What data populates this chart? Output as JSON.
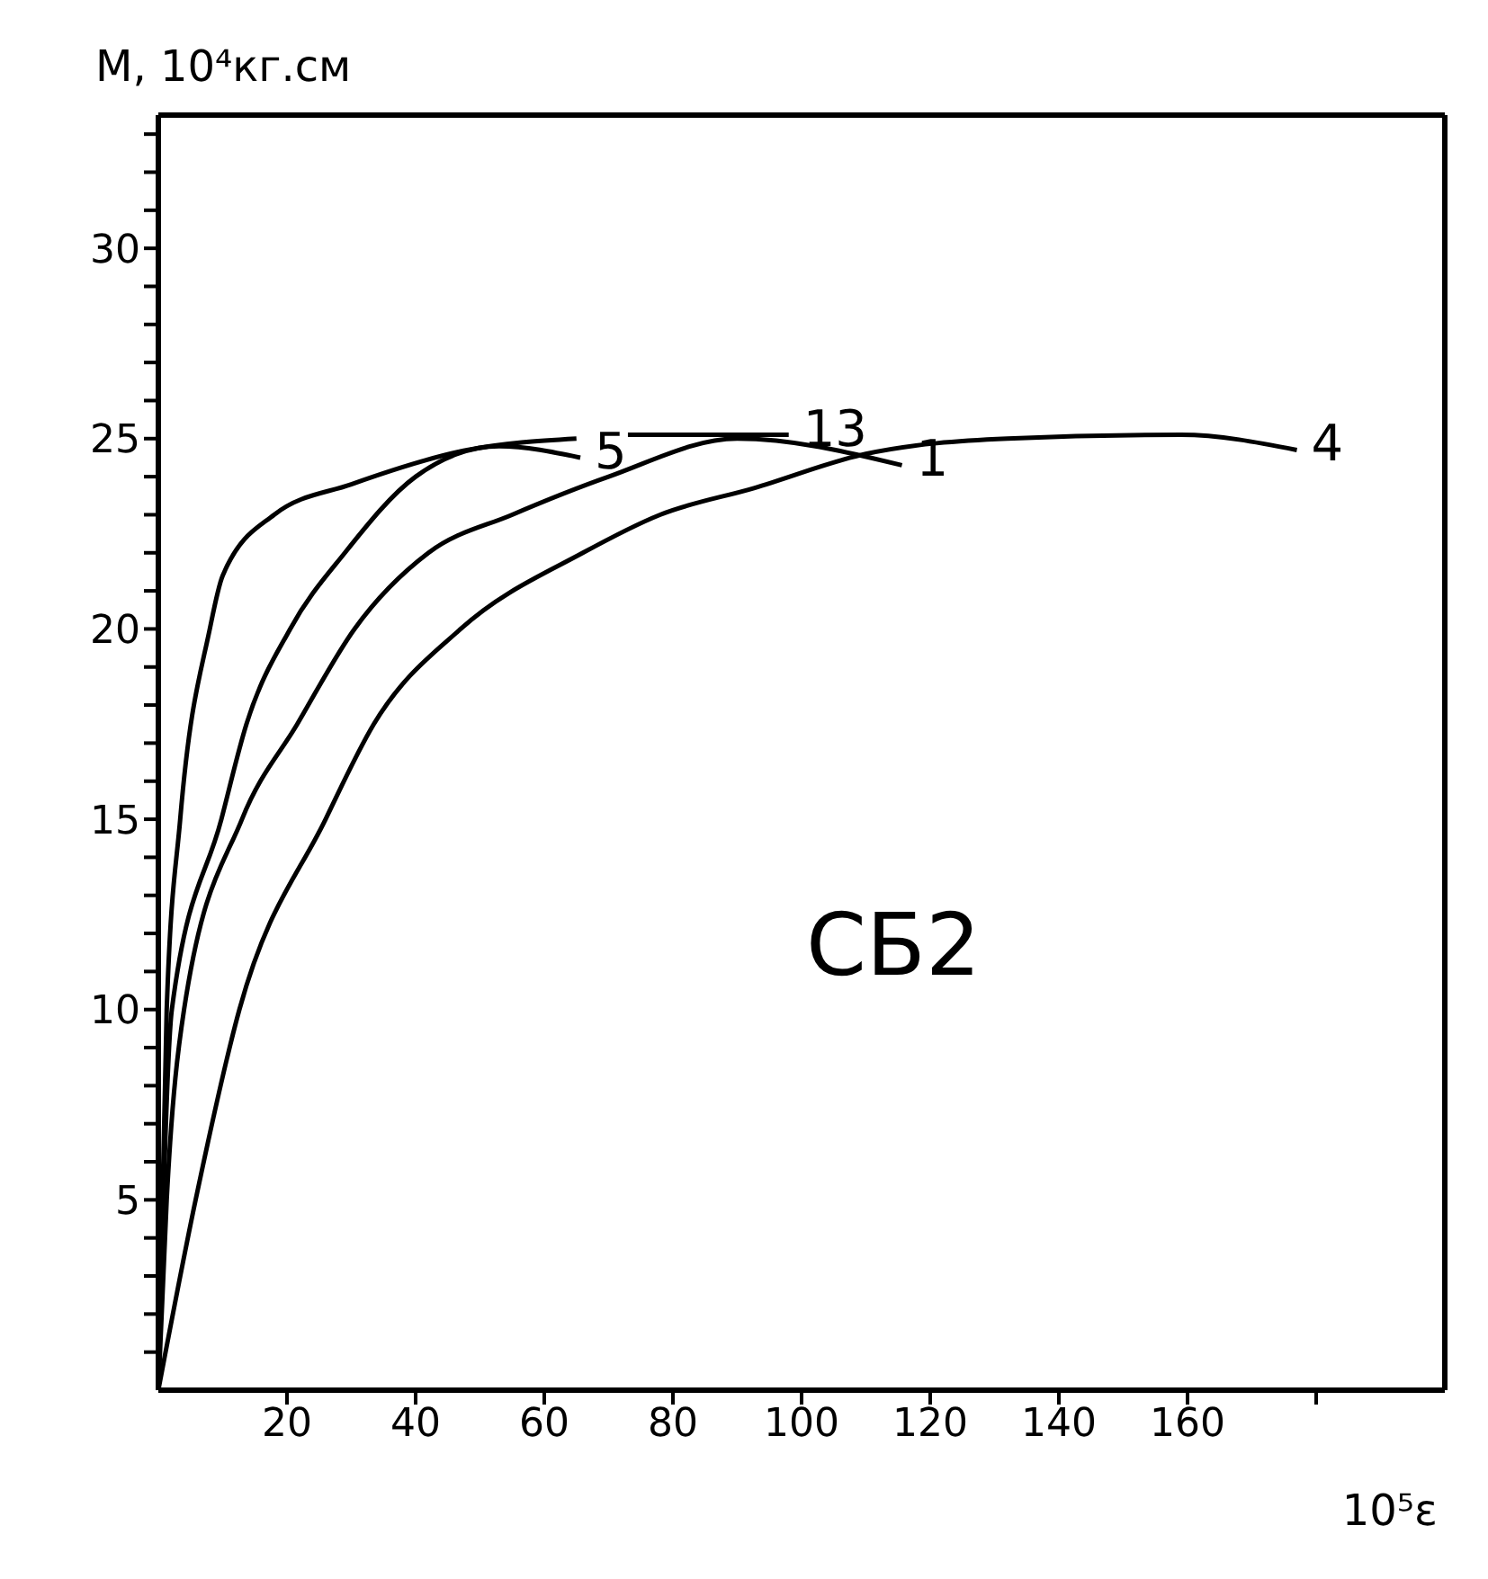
{
  "chart_data": {
    "type": "line",
    "ylabel": "М, 10⁴кг.см",
    "xlabel": "10⁵ε",
    "annotations": [
      "СБ2"
    ],
    "xlim": [
      0,
      200
    ],
    "ylim": [
      0,
      33.5
    ],
    "xticks": [
      20,
      40,
      60,
      80,
      100,
      120,
      140,
      160,
      {
        "value": 180,
        "label": null
      }
    ],
    "yticks": [
      {
        "value": 1,
        "label": null
      },
      {
        "value": 2,
        "label": null
      },
      {
        "value": 3,
        "label": null
      },
      {
        "value": 4,
        "label": null
      },
      5,
      {
        "value": 6,
        "label": null
      },
      {
        "value": 7,
        "label": null
      },
      {
        "value": 8,
        "label": null
      },
      {
        "value": 9,
        "label": null
      },
      10,
      {
        "value": 11,
        "label": null
      },
      {
        "value": 12,
        "label": null
      },
      {
        "value": 13,
        "label": null
      },
      {
        "value": 14,
        "label": null
      },
      15,
      {
        "value": 16,
        "label": null
      },
      {
        "value": 17,
        "label": null
      },
      {
        "value": 18,
        "label": null
      },
      {
        "value": 19,
        "label": null
      },
      20,
      {
        "value": 21,
        "label": null
      },
      {
        "value": 22,
        "label": null
      },
      {
        "value": 23,
        "label": null
      },
      {
        "value": 24,
        "label": null
      },
      25,
      {
        "value": 26,
        "label": null
      },
      {
        "value": 27,
        "label": null
      },
      {
        "value": 28,
        "label": null
      },
      {
        "value": 29,
        "label": null
      },
      30,
      {
        "value": 31,
        "label": null
      },
      {
        "value": 32,
        "label": null
      },
      {
        "value": 33,
        "label": null
      }
    ],
    "grid": false,
    "legend": false,
    "marker": "none",
    "line_style": "solid",
    "series": [
      {
        "name": "13",
        "color": "#000000",
        "x": [
          0,
          1.3,
          3.4,
          8,
          10,
          18,
          30,
          48,
          65,
          69,
          73,
          85,
          98
        ],
        "values": [
          0,
          10,
          15,
          20,
          21.4,
          23,
          23.8,
          24.7,
          25,
          null,
          25.1,
          25.1,
          25.1
        ]
      },
      {
        "name": "5",
        "color": "#000000",
        "x": [
          0,
          2.1,
          9.8,
          13.7,
          20.5,
          29,
          40,
          53,
          65.6
        ],
        "values": [
          0,
          10,
          15,
          17.5,
          20,
          22,
          24,
          24.8,
          24.5
        ]
      },
      {
        "name": "1",
        "color": "#000000",
        "x": [
          0,
          1.3,
          4,
          13,
          21.6,
          30.5,
          42,
          55,
          70,
          90,
          115.6
        ],
        "values": [
          0,
          5,
          10,
          15,
          17.5,
          20,
          22,
          23,
          24,
          25,
          24.3
        ]
      },
      {
        "name": "4",
        "color": "#000000",
        "x": [
          0,
          5.8,
          12.6,
          26,
          33.5,
          47,
          66,
          78,
          92.6,
          110,
          132,
          159,
          177
        ],
        "values": [
          0,
          5,
          10,
          15,
          17.5,
          20,
          22,
          23,
          23.7,
          24.6,
          25,
          25.1,
          24.7
        ]
      }
    ]
  }
}
